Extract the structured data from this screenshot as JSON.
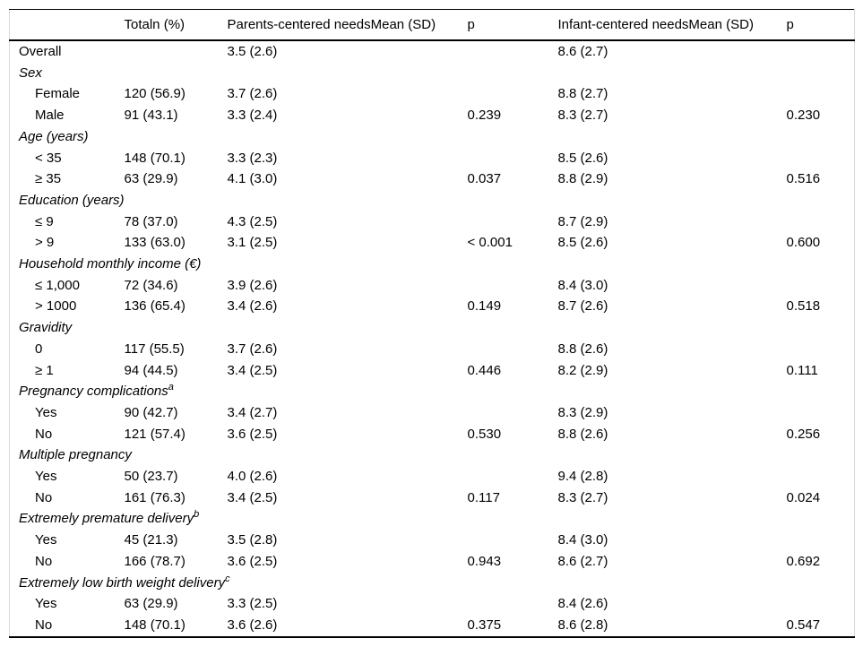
{
  "colors": {
    "rule": "#000000",
    "frame": "#d9d9d9",
    "background": "#ffffff",
    "text": "#000000"
  },
  "table": {
    "columns": [
      "",
      "Totaln (%)",
      "Parents-centered needsMean (SD)",
      "p",
      "Infant-centered needsMean (SD)",
      "p"
    ],
    "rows": [
      {
        "kind": "data",
        "indent": false,
        "label": "Overall",
        "cells": [
          "",
          "3.5 (2.6)",
          "",
          "8.6 (2.7)",
          ""
        ]
      },
      {
        "kind": "section",
        "label": "Sex",
        "sup": ""
      },
      {
        "kind": "data",
        "indent": true,
        "label": "Female",
        "cells": [
          "120 (56.9)",
          "3.7 (2.6)",
          "",
          "8.8 (2.7)",
          ""
        ]
      },
      {
        "kind": "data",
        "indent": true,
        "label": "Male",
        "cells": [
          "91 (43.1)",
          "3.3 (2.4)",
          "0.239",
          "8.3 (2.7)",
          "0.230"
        ]
      },
      {
        "kind": "section",
        "label": "Age (years)",
        "sup": ""
      },
      {
        "kind": "data",
        "indent": true,
        "label": "< 35",
        "cells": [
          "148 (70.1)",
          "3.3 (2.3)",
          "",
          "8.5 (2.6)",
          ""
        ]
      },
      {
        "kind": "data",
        "indent": true,
        "label": "≥ 35",
        "cells": [
          "63 (29.9)",
          "4.1 (3.0)",
          "0.037",
          "8.8 (2.9)",
          "0.516"
        ]
      },
      {
        "kind": "section",
        "label": "Education (years)",
        "sup": ""
      },
      {
        "kind": "data",
        "indent": true,
        "label": "≤ 9",
        "cells": [
          "78 (37.0)",
          "4.3 (2.5)",
          "",
          "8.7 (2.9)",
          ""
        ]
      },
      {
        "kind": "data",
        "indent": true,
        "label": "> 9",
        "cells": [
          "133 (63.0)",
          "3.1 (2.5)",
          "< 0.001",
          "8.5 (2.6)",
          "0.600"
        ]
      },
      {
        "kind": "section",
        "label": "Household monthly income (€)",
        "sup": ""
      },
      {
        "kind": "data",
        "indent": true,
        "label": "≤ 1,000",
        "cells": [
          "72 (34.6)",
          "3.9 (2.6)",
          "",
          "8.4 (3.0)",
          ""
        ]
      },
      {
        "kind": "data",
        "indent": true,
        "label": "> 1000",
        "cells": [
          "136 (65.4)",
          "3.4 (2.6)",
          "0.149",
          "8.7 (2.6)",
          "0.518"
        ]
      },
      {
        "kind": "section",
        "label": "Gravidity",
        "sup": ""
      },
      {
        "kind": "data",
        "indent": true,
        "label": "0",
        "cells": [
          "117 (55.5)",
          "3.7 (2.6)",
          "",
          "8.8 (2.6)",
          ""
        ]
      },
      {
        "kind": "data",
        "indent": true,
        "label": "≥ 1",
        "cells": [
          "94 (44.5)",
          "3.4 (2.5)",
          "0.446",
          "8.2 (2.9)",
          "0.111"
        ]
      },
      {
        "kind": "section",
        "label": "Pregnancy complications",
        "sup": "a"
      },
      {
        "kind": "data",
        "indent": true,
        "label": "Yes",
        "cells": [
          "90 (42.7)",
          "3.4 (2.7)",
          "",
          "8.3 (2.9)",
          ""
        ]
      },
      {
        "kind": "data",
        "indent": true,
        "label": "No",
        "cells": [
          "121 (57.4)",
          "3.6 (2.5)",
          "0.530",
          "8.8 (2.6)",
          "0.256"
        ]
      },
      {
        "kind": "section",
        "label": "Multiple pregnancy",
        "sup": ""
      },
      {
        "kind": "data",
        "indent": true,
        "label": "Yes",
        "cells": [
          "50 (23.7)",
          "4.0 (2.6)",
          "",
          "9.4 (2.8)",
          ""
        ]
      },
      {
        "kind": "data",
        "indent": true,
        "label": "No",
        "cells": [
          "161 (76.3)",
          "3.4 (2.5)",
          "0.117",
          "8.3 (2.7)",
          "0.024"
        ]
      },
      {
        "kind": "section",
        "label": "Extremely premature delivery",
        "sup": "b"
      },
      {
        "kind": "data",
        "indent": true,
        "label": "Yes",
        "cells": [
          "45 (21.3)",
          "3.5 (2.8)",
          "",
          "8.4 (3.0)",
          ""
        ]
      },
      {
        "kind": "data",
        "indent": true,
        "label": "No",
        "cells": [
          "166 (78.7)",
          "3.6 (2.5)",
          "0.943",
          "8.6 (2.7)",
          "0.692"
        ]
      },
      {
        "kind": "section",
        "label": "Extremely low birth weight delivery",
        "sup": "c"
      },
      {
        "kind": "data",
        "indent": true,
        "label": "Yes",
        "cells": [
          "63 (29.9)",
          "3.3 (2.5)",
          "",
          "8.4 (2.6)",
          ""
        ]
      },
      {
        "kind": "data",
        "indent": true,
        "label": "No",
        "cells": [
          "148 (70.1)",
          "3.6 (2.6)",
          "0.375",
          "8.6 (2.8)",
          "0.547"
        ]
      }
    ]
  }
}
